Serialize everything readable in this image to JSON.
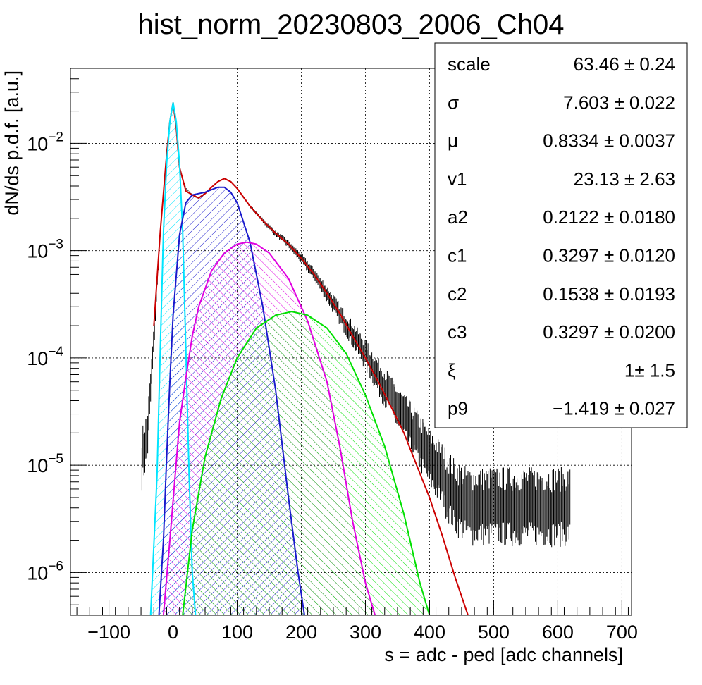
{
  "chart_data": {
    "type": "line",
    "title": "hist_norm_20230803_2006_Ch04",
    "xlabel": "s = adc - ped [adc channels]",
    "ylabel": "dN/ds p.d.f. [a.u.]",
    "xlim": [
      -160,
      715
    ],
    "ylim": [
      4e-07,
      0.05
    ],
    "log_y": true,
    "grid": true,
    "x_ticks": [
      -100,
      0,
      100,
      200,
      300,
      400,
      500,
      600,
      700
    ],
    "x_tick_labels": [
      "−100",
      "0",
      "100",
      "200",
      "300",
      "400",
      "500",
      "600",
      "700"
    ],
    "y_ticks": [
      {
        "value": 1e-06,
        "base": "10",
        "exp": "−6"
      },
      {
        "value": 1e-05,
        "base": "10",
        "exp": "−5"
      },
      {
        "value": 0.0001,
        "base": "10",
        "exp": "−4"
      },
      {
        "value": 0.001,
        "base": "10",
        "exp": "−3"
      },
      {
        "value": 0.01,
        "base": "10",
        "exp": "−2"
      }
    ],
    "histogram": {
      "color": "#000000",
      "x": [
        -50,
        -40,
        -30,
        -20,
        -10,
        -5,
        0,
        5,
        10,
        20,
        30,
        40,
        50,
        60,
        70,
        80,
        90,
        100,
        120,
        140,
        160,
        180,
        200,
        220,
        240,
        260,
        280,
        300,
        320,
        340,
        360,
        380,
        400,
        420,
        440,
        460,
        480,
        500,
        540,
        580,
        620
      ],
      "y": [
        1.2e-05,
        2e-05,
        0.00015,
        0.0015,
        0.008,
        0.016,
        0.024,
        0.014,
        0.006,
        0.0038,
        0.0033,
        0.0031,
        0.0034,
        0.0039,
        0.0044,
        0.0047,
        0.0044,
        0.0038,
        0.0026,
        0.0019,
        0.00145,
        0.00115,
        0.00085,
        0.0006,
        0.0004,
        0.00026,
        0.00017,
        0.00011,
        7e-05,
        4.5e-05,
        3e-05,
        2e-05,
        1.3e-05,
        9e-06,
        6e-06,
        5e-06,
        5e-06,
        5e-06,
        5e-06,
        5e-06,
        5e-06
      ]
    },
    "series": [
      {
        "color": "#cc0000",
        "x": [
          -30,
          -20,
          -10,
          -5,
          0,
          5,
          10,
          20,
          30,
          40,
          50,
          60,
          70,
          80,
          90,
          100,
          120,
          140,
          160,
          180,
          200,
          220,
          240,
          260,
          280,
          300,
          320,
          340,
          360,
          380,
          400,
          420,
          440,
          460
        ],
        "y": [
          0.0002,
          0.0015,
          0.008,
          0.016,
          0.024,
          0.014,
          0.006,
          0.0036,
          0.0033,
          0.0031,
          0.0034,
          0.0039,
          0.0044,
          0.0047,
          0.0044,
          0.0038,
          0.0026,
          0.0019,
          0.00145,
          0.00115,
          0.00085,
          0.0006,
          0.0004,
          0.00026,
          0.00016,
          0.0001,
          6e-05,
          3.5e-05,
          2e-05,
          1e-05,
          5e-06,
          2.2e-06,
          9e-07,
          4e-07
        ]
      },
      {
        "color": "#00e5ff",
        "fill": true,
        "x": [
          -35,
          -25,
          -20,
          -15,
          -10,
          -5,
          0,
          5,
          10,
          15,
          20,
          25,
          30,
          35
        ],
        "y": [
          4e-07,
          8e-06,
          0.00012,
          0.0015,
          0.0065,
          0.016,
          0.024,
          0.016,
          0.0065,
          0.0015,
          0.00012,
          8e-06,
          1e-06,
          4e-07
        ]
      },
      {
        "color": "#1a1acc",
        "fill": true,
        "x": [
          -22,
          -15,
          -10,
          -5,
          0,
          10,
          20,
          30,
          40,
          50,
          60,
          70,
          80,
          90,
          100,
          120,
          140,
          160,
          180,
          195,
          205
        ],
        "y": [
          4e-07,
          2e-06,
          1.2e-05,
          6e-05,
          0.00025,
          0.0014,
          0.0028,
          0.0033,
          0.0034,
          0.0035,
          0.0037,
          0.0039,
          0.0039,
          0.0035,
          0.0028,
          0.0012,
          0.0003,
          5e-05,
          5e-06,
          1e-06,
          4e-07
        ]
      },
      {
        "color": "#e000e0",
        "fill": true,
        "x": [
          -15,
          -5,
          10,
          20,
          30,
          40,
          60,
          80,
          100,
          115,
          130,
          150,
          180,
          210,
          240,
          260,
          280,
          300,
          315
        ],
        "y": [
          4e-07,
          2e-06,
          2.5e-05,
          6.5e-05,
          0.00016,
          0.0003,
          0.00065,
          0.00095,
          0.00115,
          0.0012,
          0.00115,
          0.00095,
          0.00055,
          0.00022,
          6e-05,
          1.5e-05,
          3e-06,
          8e-07,
          4e-07
        ]
      },
      {
        "color": "#00e000",
        "fill": true,
        "x": [
          15,
          30,
          50,
          75,
          100,
          130,
          160,
          185,
          210,
          240,
          270,
          300,
          330,
          360,
          385,
          400
        ],
        "y": [
          4e-07,
          2.5e-06,
          1.2e-05,
          4.2e-05,
          0.0001,
          0.00019,
          0.00025,
          0.00027,
          0.00025,
          0.00019,
          0.00011,
          4.5e-05,
          1.5e-05,
          3.5e-06,
          8e-07,
          4e-07
        ]
      }
    ]
  },
  "stats": {
    "rows": [
      {
        "name": "scale",
        "value": "63.46 ± 0.24"
      },
      {
        "name": "σ",
        "value": "7.603 ± 0.022"
      },
      {
        "name": "μ",
        "value": "0.8334 ± 0.0037"
      },
      {
        "name": "v1",
        "value": "23.13 ± 2.63"
      },
      {
        "name": "a2",
        "value": "0.2122 ± 0.0180"
      },
      {
        "name": "c1",
        "value": "0.3297 ± 0.0120"
      },
      {
        "name": "c2",
        "value": "0.1538 ± 0.0193"
      },
      {
        "name": "c3",
        "value": "0.3297 ± 0.0200"
      },
      {
        "name": "ξ",
        "value": "1± 1.5"
      },
      {
        "name": "p9",
        "value": "−1.419 ± 0.027"
      }
    ]
  }
}
